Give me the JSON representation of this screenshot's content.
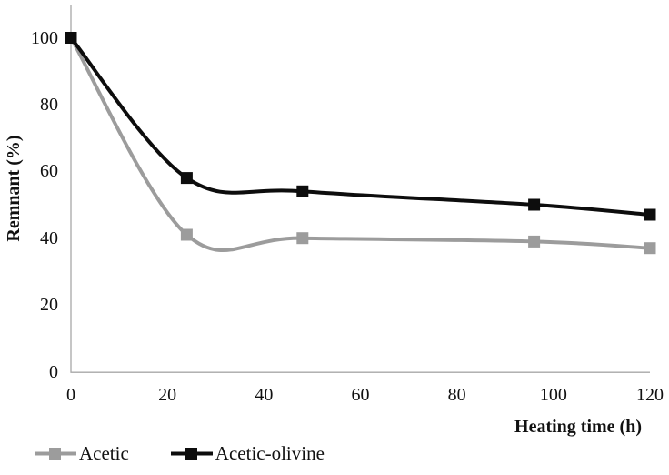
{
  "chart_data": {
    "type": "line",
    "smoothed": true,
    "marker": "square",
    "title": "",
    "xlabel": "Heating time (h)",
    "ylabel": "Remnant (%)",
    "xlim": [
      0,
      120
    ],
    "ylim": [
      0,
      100
    ],
    "xticks": [
      0,
      20,
      40,
      60,
      80,
      100,
      120
    ],
    "yticks": [
      0,
      20,
      40,
      60,
      80,
      100
    ],
    "x": [
      0,
      24,
      48,
      96,
      120
    ],
    "series": [
      {
        "name": "Acetic",
        "color": "#9c9c9c",
        "values": [
          100,
          41,
          40,
          39,
          37
        ]
      },
      {
        "name": "Acetic-olivine",
        "color": "#0d0d0d",
        "values": [
          100,
          58,
          54,
          50,
          47
        ]
      }
    ],
    "grid": false,
    "legend_position": "bottom-left",
    "axis_color": "#a8a8a8",
    "text_color": "#111111",
    "background_color": "#ffffff"
  }
}
